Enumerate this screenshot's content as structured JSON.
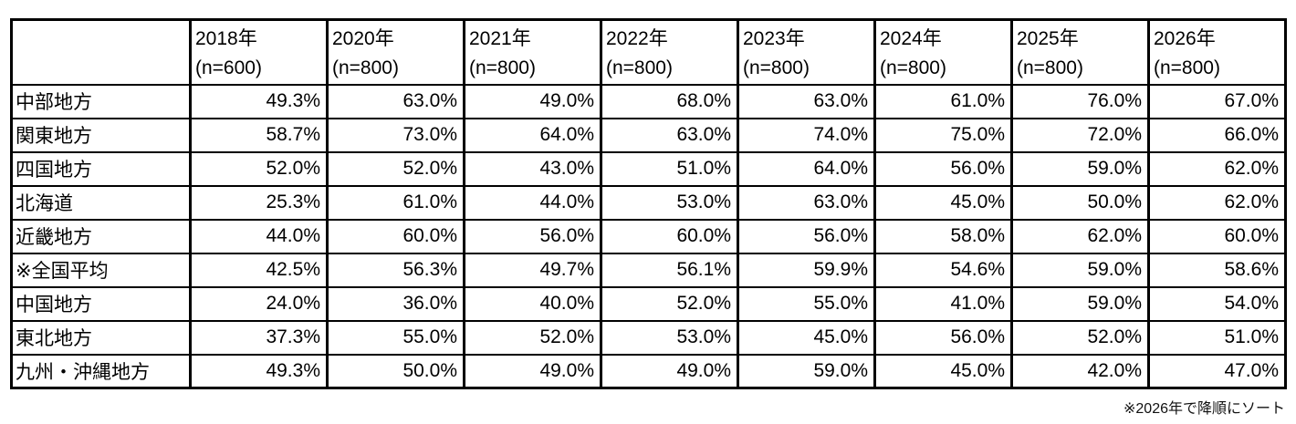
{
  "table": {
    "corner_label": "",
    "columns": [
      {
        "year": "2018年",
        "n": "(n=600)"
      },
      {
        "year": "2020年",
        "n": "(n=800)"
      },
      {
        "year": "2021年",
        "n": "(n=800)"
      },
      {
        "year": "2022年",
        "n": "(n=800)"
      },
      {
        "year": "2023年",
        "n": "(n=800)"
      },
      {
        "year": "2024年",
        "n": "(n=800)"
      },
      {
        "year": "2025年",
        "n": "(n=800)"
      },
      {
        "year": "2026年",
        "n": "(n=800)"
      }
    ],
    "rows": [
      {
        "label": "中部地方",
        "values": [
          "49.3%",
          "63.0%",
          "49.0%",
          "68.0%",
          "63.0%",
          "61.0%",
          "76.0%",
          "67.0%"
        ]
      },
      {
        "label": "関東地方",
        "values": [
          "58.7%",
          "73.0%",
          "64.0%",
          "63.0%",
          "74.0%",
          "75.0%",
          "72.0%",
          "66.0%"
        ]
      },
      {
        "label": "四国地方",
        "values": [
          "52.0%",
          "52.0%",
          "43.0%",
          "51.0%",
          "64.0%",
          "56.0%",
          "59.0%",
          "62.0%"
        ]
      },
      {
        "label": "北海道",
        "values": [
          "25.3%",
          "61.0%",
          "44.0%",
          "53.0%",
          "63.0%",
          "45.0%",
          "50.0%",
          "62.0%"
        ]
      },
      {
        "label": "近畿地方",
        "values": [
          "44.0%",
          "60.0%",
          "56.0%",
          "60.0%",
          "56.0%",
          "58.0%",
          "62.0%",
          "60.0%"
        ]
      },
      {
        "label": "※全国平均",
        "values": [
          "42.5%",
          "56.3%",
          "49.7%",
          "56.1%",
          "59.9%",
          "54.6%",
          "59.0%",
          "58.6%"
        ]
      },
      {
        "label": "中国地方",
        "values": [
          "24.0%",
          "36.0%",
          "40.0%",
          "52.0%",
          "55.0%",
          "41.0%",
          "59.0%",
          "54.0%"
        ]
      },
      {
        "label": "東北地方",
        "values": [
          "37.3%",
          "55.0%",
          "52.0%",
          "53.0%",
          "45.0%",
          "56.0%",
          "52.0%",
          "51.0%"
        ]
      },
      {
        "label": "九州・沖縄地方",
        "values": [
          "49.3%",
          "50.0%",
          "49.0%",
          "49.0%",
          "59.0%",
          "45.0%",
          "42.0%",
          "47.0%"
        ]
      }
    ],
    "footnote": "※2026年で降順にソート"
  },
  "chart_data": {
    "type": "table",
    "title": "",
    "unit": "%",
    "columns": [
      "2018年 (n=600)",
      "2020年 (n=800)",
      "2021年 (n=800)",
      "2022年 (n=800)",
      "2023年 (n=800)",
      "2024年 (n=800)",
      "2025年 (n=800)",
      "2026年 (n=800)"
    ],
    "row_labels": [
      "中部地方",
      "関東地方",
      "四国地方",
      "北海道",
      "近畿地方",
      "※全国平均",
      "中国地方",
      "東北地方",
      "九州・沖縄地方"
    ],
    "values": [
      [
        49.3,
        63.0,
        49.0,
        68.0,
        63.0,
        61.0,
        76.0,
        67.0
      ],
      [
        58.7,
        73.0,
        64.0,
        63.0,
        74.0,
        75.0,
        72.0,
        66.0
      ],
      [
        52.0,
        52.0,
        43.0,
        51.0,
        64.0,
        56.0,
        59.0,
        62.0
      ],
      [
        25.3,
        61.0,
        44.0,
        53.0,
        63.0,
        45.0,
        50.0,
        62.0
      ],
      [
        44.0,
        60.0,
        56.0,
        60.0,
        56.0,
        58.0,
        62.0,
        60.0
      ],
      [
        42.5,
        56.3,
        49.7,
        56.1,
        59.9,
        54.6,
        59.0,
        58.6
      ],
      [
        24.0,
        36.0,
        40.0,
        52.0,
        55.0,
        41.0,
        59.0,
        54.0
      ],
      [
        37.3,
        55.0,
        52.0,
        53.0,
        45.0,
        56.0,
        52.0,
        51.0
      ],
      [
        49.3,
        50.0,
        49.0,
        49.0,
        59.0,
        45.0,
        42.0,
        47.0
      ]
    ],
    "note": "※2026年で降順にソート",
    "sort": "descending by 2026年"
  }
}
